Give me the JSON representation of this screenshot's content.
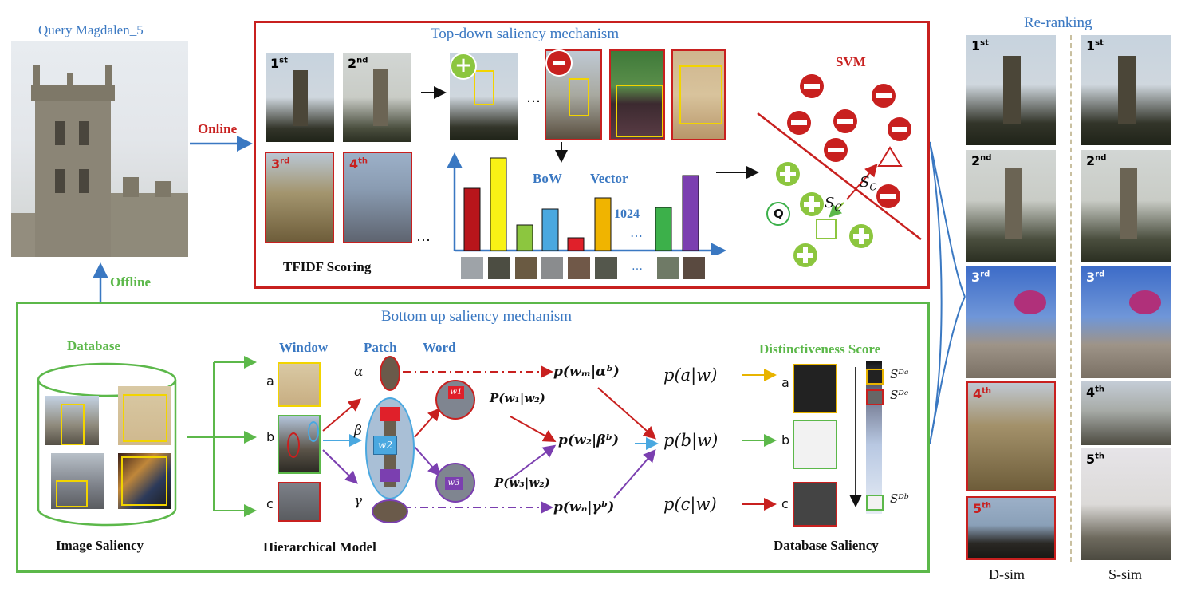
{
  "query": {
    "title": "Query Magdalen_5",
    "online": "Online",
    "offline": "Offline"
  },
  "topdown": {
    "title": "Top-down saliency mechanism",
    "ranks": [
      "1",
      "2",
      "3",
      "4"
    ],
    "rank_suffix": [
      "st",
      "nd",
      "rd",
      "th"
    ],
    "ellipsis": "…",
    "tfidf": "TFIDF  Scoring",
    "bow": "BoW",
    "vector": "Vector",
    "dim": "1024",
    "svm": "SVM",
    "q": "Q",
    "sc": "S",
    "sc_sub": "C"
  },
  "bottomup": {
    "title": "Bottom up saliency mechanism",
    "database": "Database",
    "image_saliency": "Image Saliency",
    "window": "Window",
    "patch": "Patch",
    "word": "Word",
    "hier_model": "Hierarchical  Model",
    "dist_score": "Distinctiveness Score",
    "db_saliency": "Database  Saliency",
    "letters": [
      "a",
      "b",
      "c"
    ],
    "greek": [
      "α",
      "β",
      "γ"
    ],
    "w1": "w1",
    "w2": "w2",
    "w3": "w3",
    "p_w1w2": "P(w₁|w₂)",
    "p_w3w2": "P(w₃|w₂)",
    "p_wm": "p(wₘ|αᵇ)",
    "p_w2b": "p(w₂|βᵇ)",
    "p_wn": "p(wₙ|γᵇ)",
    "p_a": "p(a|w)",
    "p_b": "p(b|w)",
    "p_c": "p(c|w)",
    "sd_a": "Sᴰᵃ",
    "sd_c": "Sᴰᶜ",
    "sd_b": "Sᴰᵇ"
  },
  "rerank": {
    "title": "Re-ranking",
    "left_label": "D-sim",
    "right_label": "S-sim",
    "ranks": [
      "1",
      "2",
      "3",
      "4",
      "5"
    ],
    "rank_suffix": [
      "st",
      "nd",
      "rd",
      "th",
      "th"
    ]
  },
  "colors": {
    "red": "#c8201f",
    "green": "#5cb84a",
    "blue": "#3a78c2",
    "purple": "#7b3fb0",
    "yellow": "#f2d400"
  }
}
